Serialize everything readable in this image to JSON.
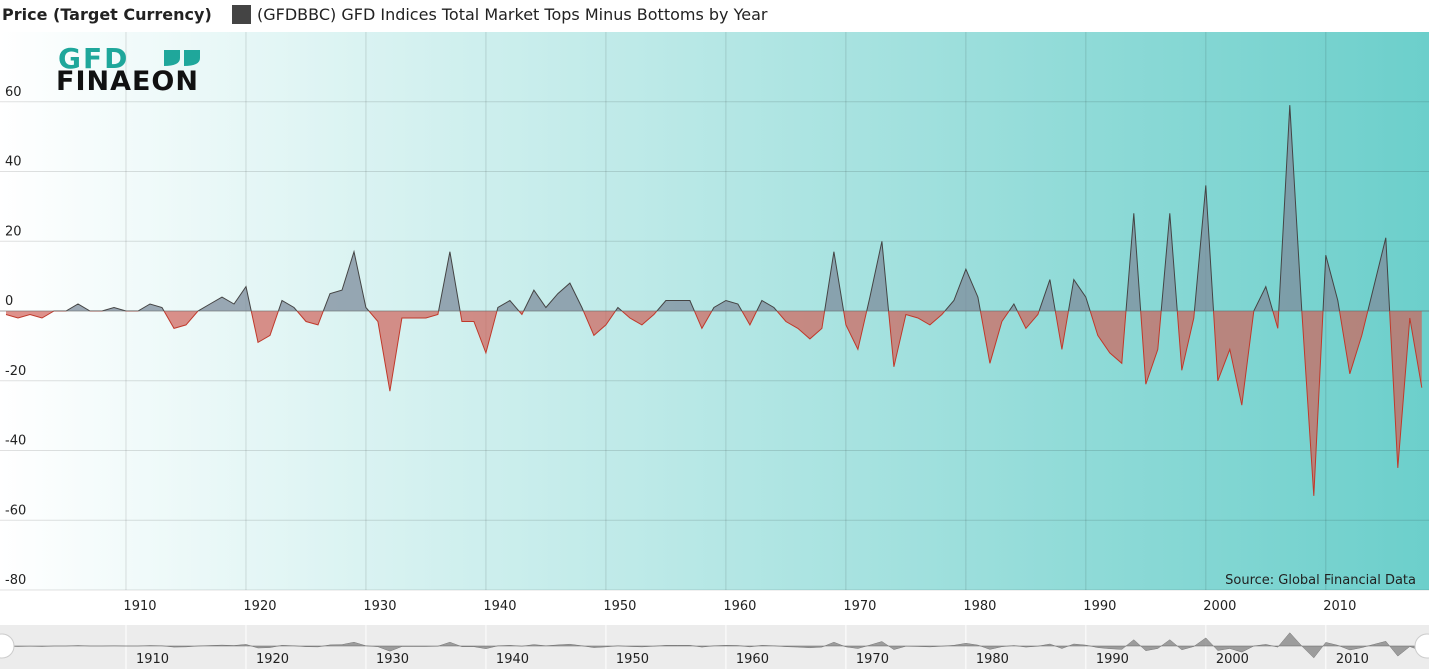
{
  "chart_data": {
    "type": "area",
    "y_axis_title": "Price (Target Currency)",
    "logo": {
      "top": "GFD",
      "bottom": "FINAEON"
    },
    "source": "Source: Global Financial Data",
    "x": [
      1900,
      1901,
      1902,
      1903,
      1904,
      1905,
      1906,
      1907,
      1908,
      1909,
      1910,
      1911,
      1912,
      1913,
      1914,
      1915,
      1916,
      1917,
      1918,
      1919,
      1920,
      1921,
      1922,
      1923,
      1924,
      1925,
      1926,
      1927,
      1928,
      1929,
      1930,
      1931,
      1932,
      1933,
      1934,
      1935,
      1936,
      1937,
      1938,
      1939,
      1940,
      1941,
      1942,
      1943,
      1944,
      1945,
      1946,
      1947,
      1948,
      1949,
      1950,
      1951,
      1952,
      1953,
      1954,
      1955,
      1956,
      1957,
      1958,
      1959,
      1960,
      1961,
      1962,
      1963,
      1964,
      1965,
      1966,
      1967,
      1968,
      1969,
      1970,
      1971,
      1972,
      1973,
      1974,
      1975,
      1976,
      1977,
      1978,
      1979,
      1980,
      1981,
      1982,
      1983,
      1984,
      1985,
      1986,
      1987,
      1988,
      1989,
      1990,
      1991,
      1992,
      1993,
      1994,
      1995,
      1996,
      1997,
      1998,
      1999,
      2000,
      2001,
      2002,
      2003,
      2004,
      2005,
      2006,
      2007,
      2008,
      2009,
      2010,
      2011,
      2012,
      2013,
      2014,
      2015,
      2016,
      2017,
      2018
    ],
    "series": [
      {
        "name": "(GFDBBC) GFD Indices Total Market Tops Minus Bottoms by Year",
        "color": "#444444",
        "positive_color": "#7d8c9c",
        "negative_color": "#d0625a",
        "values": [
          -1,
          -2,
          -1,
          -2,
          0,
          0,
          2,
          0,
          0,
          1,
          0,
          0,
          2,
          1,
          -5,
          -4,
          0,
          2,
          4,
          2,
          7,
          -9,
          -7,
          3,
          1,
          -3,
          -4,
          5,
          6,
          17,
          1,
          -3,
          -23,
          -2,
          -2,
          -2,
          -1,
          17,
          -3,
          -3,
          -12,
          1,
          3,
          -1,
          6,
          1,
          5,
          8,
          1,
          -7,
          -4,
          1,
          -2,
          -4,
          -1,
          3,
          3,
          3,
          -5,
          1,
          3,
          2,
          -4,
          3,
          1,
          -3,
          -5,
          -8,
          -5,
          17,
          -4,
          -11,
          4,
          20,
          -16,
          -1,
          -2,
          -4,
          -1,
          3,
          12,
          4,
          -15,
          -3,
          2,
          -5,
          -1,
          9,
          -11,
          9,
          4,
          -7,
          -12,
          -15,
          28,
          -21,
          -11,
          28,
          -17,
          -2,
          36,
          -20,
          -11,
          -27,
          0,
          7,
          -5,
          59,
          0,
          -53,
          16,
          3,
          -18,
          -7,
          7,
          21,
          -45,
          -2,
          -22
        ]
      }
    ],
    "xlim": [
      1899.5,
      2018.6
    ],
    "xticks": [
      1910,
      1920,
      1930,
      1940,
      1950,
      1960,
      1970,
      1980,
      1990,
      2000,
      2010
    ],
    "ylim": [
      -80,
      80
    ],
    "yticks": [
      -80,
      -60,
      -40,
      -20,
      0,
      20,
      40,
      60
    ],
    "grid": true
  }
}
